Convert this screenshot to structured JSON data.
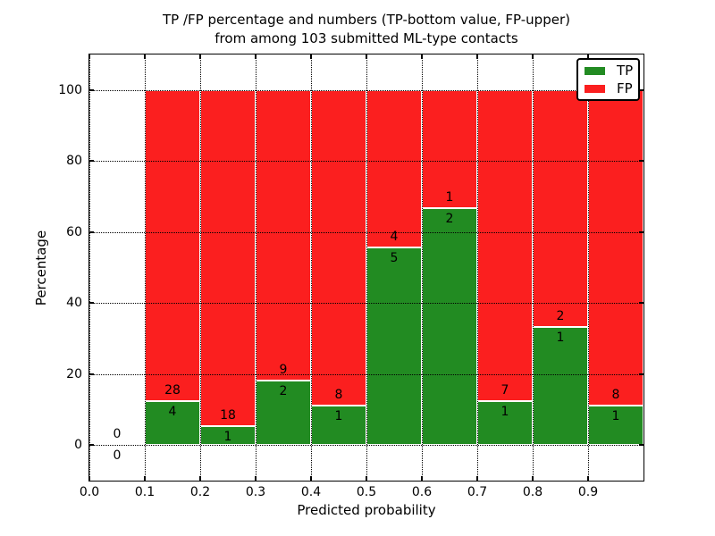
{
  "chart_data": {
    "type": "bar",
    "stacked": true,
    "title_line1": "TP /FP percentage and numbers (TP-bottom value, FP-upper)",
    "title_line2": "from among 103 submitted ML-type contacts",
    "xlabel": "Predicted probability",
    "ylabel": "Percentage",
    "xlim": [
      0.0,
      1.0
    ],
    "ylim": [
      -10,
      110
    ],
    "xtick_labels": [
      "0.0",
      "0.1",
      "0.2",
      "0.3",
      "0.4",
      "0.5",
      "0.6",
      "0.7",
      "0.8",
      "0.9"
    ],
    "ytick_labels": [
      "0",
      "20",
      "40",
      "60",
      "80",
      "100"
    ],
    "grid": "dotted, drawn above bars",
    "total_contacts": 103,
    "series": [
      {
        "name": "TP",
        "color": "#228b22"
      },
      {
        "name": "FP",
        "color": "#fb1f1f"
      }
    ],
    "bins": [
      {
        "x0": 0.0,
        "x1": 0.1,
        "tp": 0,
        "fp": 0,
        "tp_pct": 0
      },
      {
        "x0": 0.1,
        "x1": 0.2,
        "tp": 4,
        "fp": 28,
        "tp_pct": 12.5
      },
      {
        "x0": 0.2,
        "x1": 0.3,
        "tp": 1,
        "fp": 18,
        "tp_pct": 5.26
      },
      {
        "x0": 0.3,
        "x1": 0.4,
        "tp": 2,
        "fp": 9,
        "tp_pct": 18.18
      },
      {
        "x0": 0.4,
        "x1": 0.5,
        "tp": 1,
        "fp": 8,
        "tp_pct": 11.11
      },
      {
        "x0": 0.5,
        "x1": 0.6,
        "tp": 5,
        "fp": 4,
        "tp_pct": 55.56
      },
      {
        "x0": 0.6,
        "x1": 0.7,
        "tp": 2,
        "fp": 1,
        "tp_pct": 66.67
      },
      {
        "x0": 0.7,
        "x1": 0.8,
        "tp": 1,
        "fp": 7,
        "tp_pct": 12.5
      },
      {
        "x0": 0.8,
        "x1": 0.9,
        "tp": 1,
        "fp": 2,
        "tp_pct": 33.33
      },
      {
        "x0": 0.9,
        "x1": 1.0,
        "tp": 1,
        "fp": 8,
        "tp_pct": 11.11
      }
    ],
    "legend": {
      "position": "upper right",
      "items": [
        {
          "label": "TP",
          "color": "#228b22"
        },
        {
          "label": "FP",
          "color": "#fb1f1f"
        }
      ]
    },
    "bar_edge_color": "#ffffff"
  }
}
